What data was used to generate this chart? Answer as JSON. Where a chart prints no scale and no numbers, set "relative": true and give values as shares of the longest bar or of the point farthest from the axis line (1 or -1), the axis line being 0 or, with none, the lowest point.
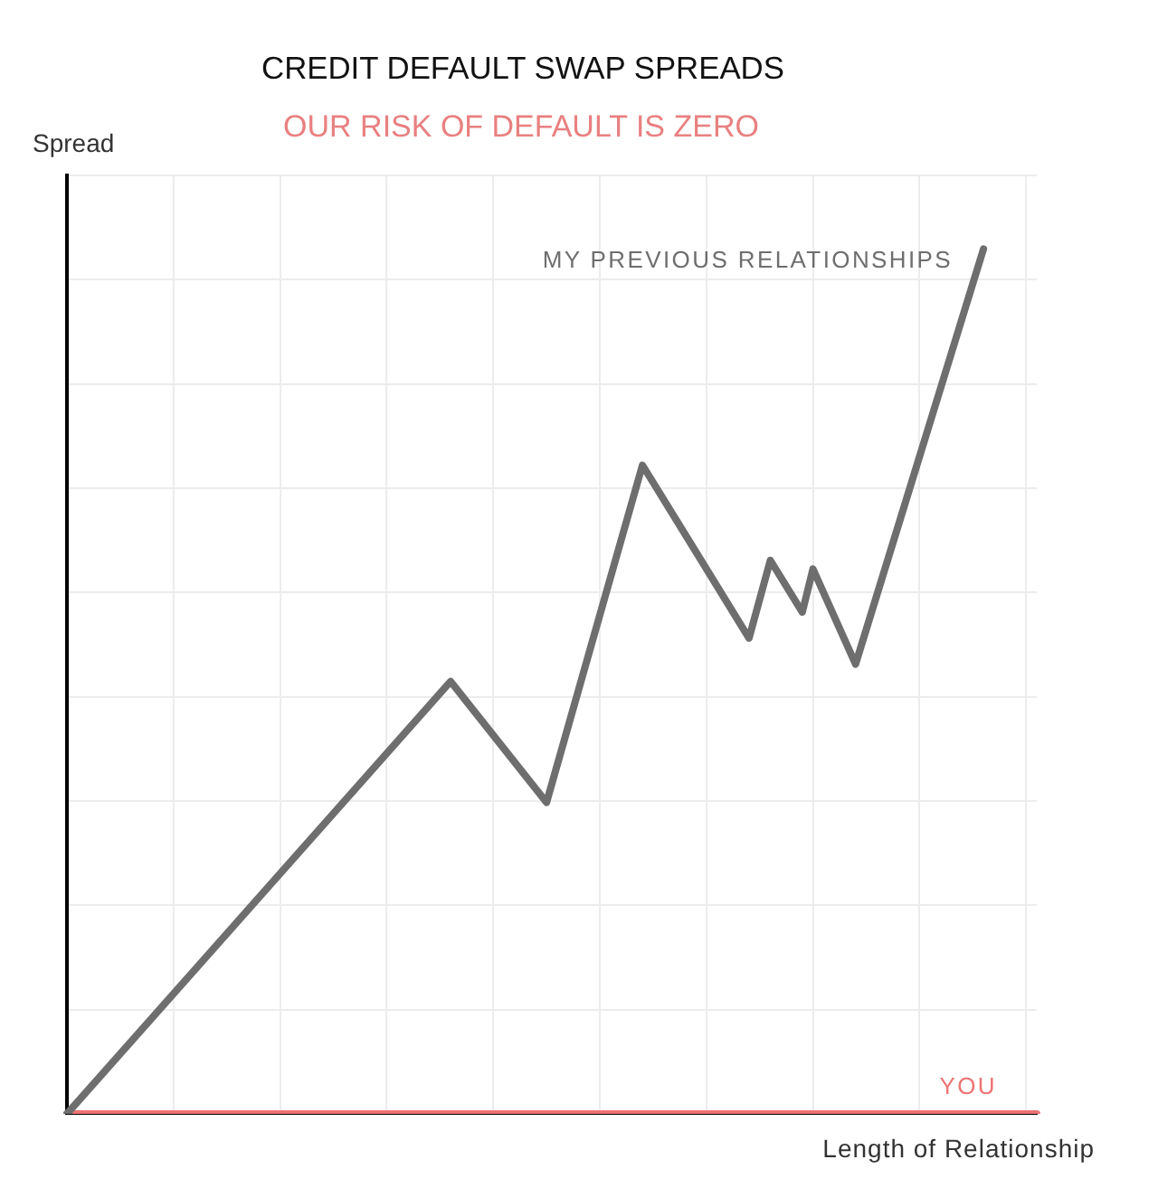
{
  "chart_data": {
    "type": "line",
    "title": "CREDIT DEFAULT SWAP SPREADS",
    "subtitle": "OUR RISK OF DEFAULT IS ZERO",
    "xlabel": "Length of Relationship",
    "ylabel": "Spread",
    "relative": true,
    "grid": true,
    "marker": "none",
    "line_style": "solid",
    "categories": [
      null,
      null,
      null,
      null,
      null,
      null,
      null,
      null,
      null,
      null,
      null,
      null,
      null,
      null,
      null,
      null,
      null,
      null,
      null,
      null,
      null,
      null,
      null,
      null,
      null,
      null,
      null,
      null,
      null,
      null,
      null,
      null,
      null,
      null,
      null,
      null,
      null,
      null,
      null,
      null,
      null,
      null,
      null,
      null,
      null,
      null,
      null,
      null,
      null,
      null,
      null,
      null,
      null,
      null,
      null,
      null,
      null,
      null,
      null,
      null,
      null,
      null,
      null,
      null,
      null,
      null,
      null,
      null,
      null,
      null,
      null,
      null,
      null,
      null,
      null,
      null,
      null,
      null,
      null,
      null,
      null,
      null,
      null,
      null,
      null,
      null,
      null,
      null,
      null,
      null,
      null,
      null
    ],
    "series": [
      {
        "name": "MY PREVIOUS RELATIONSHIPS",
        "color": "#6e6e6e",
        "values": [
          0,
          null,
          null,
          null,
          null,
          null,
          null,
          null,
          null,
          null,
          null,
          null,
          null,
          null,
          null,
          null,
          null,
          null,
          null,
          null,
          null,
          null,
          null,
          null,
          null,
          null,
          null,
          null,
          null,
          null,
          null,
          null,
          null,
          null,
          null,
          null,
          0.5,
          null,
          null,
          null,
          null,
          null,
          null,
          null,
          null,
          0.36,
          null,
          null,
          null,
          null,
          null,
          null,
          null,
          null,
          0.75,
          null,
          null,
          null,
          null,
          null,
          null,
          null,
          null,
          null,
          0.55,
          null,
          0.64,
          null,
          null,
          0.58,
          0.63,
          null,
          null,
          null,
          0.52,
          null,
          null,
          null,
          null,
          null,
          null,
          null,
          null,
          null,
          null,
          null,
          1,
          null,
          null,
          null,
          null,
          null
        ]
      },
      {
        "name": "YOU",
        "color": "#ee7373",
        "values": [
          0,
          0,
          0,
          0,
          0,
          0,
          0,
          0,
          0,
          0,
          0,
          0,
          0,
          0,
          0,
          0,
          0,
          0,
          0,
          0,
          0,
          0,
          0,
          0,
          0,
          0,
          0,
          0,
          0,
          0,
          0,
          0,
          0,
          0,
          0,
          0,
          0,
          0,
          0,
          0,
          0,
          0,
          0,
          0,
          0,
          0,
          0,
          0,
          0,
          0,
          0,
          0,
          0,
          0,
          0,
          0,
          0,
          0,
          0,
          0,
          0,
          0,
          0,
          0,
          0,
          0,
          0,
          0,
          0,
          0,
          0,
          0,
          0,
          0,
          0,
          0,
          0,
          0,
          0,
          0,
          0,
          0,
          0,
          0,
          0,
          0,
          0,
          0,
          0,
          0,
          0,
          0
        ]
      }
    ]
  }
}
